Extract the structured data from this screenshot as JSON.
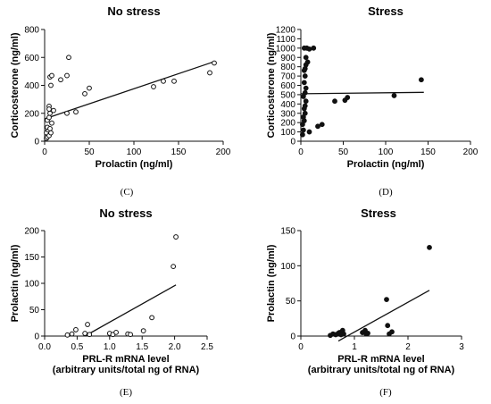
{
  "chart_data": [
    {
      "type": "scatter",
      "title": "No stress",
      "xlabel": "Prolactin (ng/ml)",
      "ylabel": "Corticosterone (ng/ml)",
      "xlim": [
        0,
        200
      ],
      "ylim": [
        0,
        800
      ],
      "xticks": [
        "0",
        "50",
        "100",
        "150",
        "200"
      ],
      "yticks": [
        "0",
        "200",
        "400",
        "600",
        "800"
      ],
      "marker": "open",
      "points": [
        [
          2,
          20
        ],
        [
          3,
          30
        ],
        [
          2,
          60
        ],
        [
          4,
          80
        ],
        [
          3,
          100
        ],
        [
          5,
          40
        ],
        [
          6,
          90
        ],
        [
          7,
          60
        ],
        [
          8,
          130
        ],
        [
          3,
          150
        ],
        [
          5,
          170
        ],
        [
          6,
          200
        ],
        [
          5,
          250
        ],
        [
          5,
          230
        ],
        [
          10,
          220
        ],
        [
          7,
          400
        ],
        [
          6,
          460
        ],
        [
          8,
          470
        ],
        [
          18,
          440
        ],
        [
          25,
          470
        ],
        [
          27,
          600
        ],
        [
          25,
          200
        ],
        [
          35,
          210
        ],
        [
          45,
          340
        ],
        [
          50,
          380
        ],
        [
          122,
          390
        ],
        [
          133,
          430
        ],
        [
          145,
          430
        ],
        [
          185,
          490
        ],
        [
          190,
          560
        ]
      ],
      "trend": [
        [
          0,
          160
        ],
        [
          190,
          570
        ]
      ],
      "label": "(C)"
    },
    {
      "type": "scatter",
      "title": "Stress",
      "xlabel": "Prolactin (ng/ml)",
      "ylabel": "Corticosterone (ng/ml)",
      "xlim": [
        0,
        200
      ],
      "ylim": [
        0,
        1200
      ],
      "xticks": [
        "0",
        "50",
        "100",
        "150",
        "200"
      ],
      "yticks": [
        "0",
        "100",
        "200",
        "300",
        "400",
        "500",
        "600",
        "700",
        "800",
        "900",
        "1000",
        "1100",
        "1200"
      ],
      "marker": "filled",
      "points": [
        [
          2,
          70
        ],
        [
          3,
          120
        ],
        [
          2,
          180
        ],
        [
          4,
          220
        ],
        [
          3,
          260
        ],
        [
          5,
          300
        ],
        [
          4,
          350
        ],
        [
          5,
          380
        ],
        [
          6,
          430
        ],
        [
          3,
          480
        ],
        [
          5,
          520
        ],
        [
          6,
          570
        ],
        [
          4,
          630
        ],
        [
          5,
          700
        ],
        [
          4,
          760
        ],
        [
          5,
          780
        ],
        [
          6,
          820
        ],
        [
          8,
          850
        ],
        [
          6,
          900
        ],
        [
          4,
          1000
        ],
        [
          7,
          1000
        ],
        [
          10,
          990
        ],
        [
          15,
          1000
        ],
        [
          10,
          100
        ],
        [
          20,
          160
        ],
        [
          25,
          180
        ],
        [
          40,
          430
        ],
        [
          52,
          440
        ],
        [
          55,
          470
        ],
        [
          110,
          490
        ],
        [
          142,
          660
        ]
      ],
      "trend": [
        [
          0,
          510
        ],
        [
          145,
          525
        ]
      ],
      "label": "(D)"
    },
    {
      "type": "scatter",
      "title": "No stress",
      "xlabel": "PRL-R mRNA level",
      "xlabel2": "(arbitrary units/total ng of RNA)",
      "ylabel": "Prolactin (ng/ml)",
      "xlim": [
        0,
        2.5
      ],
      "ylim": [
        0,
        200
      ],
      "xticks": [
        "0.0",
        "0.5",
        "1.0",
        "1.5",
        "2.0",
        "2.5"
      ],
      "yticks": [
        "0",
        "50",
        "100",
        "150",
        "200"
      ],
      "marker": "open",
      "points": [
        [
          0.35,
          2
        ],
        [
          0.42,
          4
        ],
        [
          0.48,
          12
        ],
        [
          0.62,
          5
        ],
        [
          0.66,
          22
        ],
        [
          0.69,
          3
        ],
        [
          1.0,
          5
        ],
        [
          1.05,
          3
        ],
        [
          1.1,
          7
        ],
        [
          1.28,
          4
        ],
        [
          1.32,
          3
        ],
        [
          1.52,
          10
        ],
        [
          1.65,
          35
        ],
        [
          1.98,
          132
        ],
        [
          2.02,
          188
        ]
      ],
      "trend": [
        [
          0.62,
          0
        ],
        [
          2.02,
          97
        ]
      ],
      "label": "(E)"
    },
    {
      "type": "scatter",
      "title": "Stress",
      "xlabel": "PRL-R mRNA level",
      "xlabel2": "(arbitrary units/total ng of RNA)",
      "ylabel": "Prolactin (ng/ml)",
      "xlim": [
        0,
        3
      ],
      "ylim": [
        0,
        150
      ],
      "xticks": [
        "0",
        "1",
        "2",
        "3"
      ],
      "yticks": [
        "0",
        "50",
        "100",
        "150"
      ],
      "marker": "filled",
      "points": [
        [
          0.55,
          1
        ],
        [
          0.6,
          3
        ],
        [
          0.65,
          2
        ],
        [
          0.7,
          4
        ],
        [
          0.72,
          5
        ],
        [
          0.75,
          2
        ],
        [
          0.78,
          8
        ],
        [
          0.8,
          3
        ],
        [
          1.15,
          5
        ],
        [
          1.2,
          8
        ],
        [
          1.22,
          3
        ],
        [
          1.25,
          4
        ],
        [
          1.6,
          52
        ],
        [
          1.62,
          15
        ],
        [
          1.65,
          3
        ],
        [
          1.7,
          6
        ],
        [
          2.4,
          126
        ]
      ],
      "trend": [
        [
          0.7,
          -7
        ],
        [
          2.4,
          65
        ]
      ],
      "label": "(F)"
    }
  ]
}
